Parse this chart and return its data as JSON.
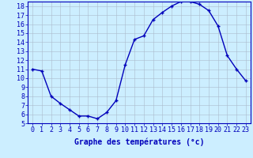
{
  "hours": [
    0,
    1,
    2,
    3,
    4,
    5,
    6,
    7,
    8,
    9,
    10,
    11,
    12,
    13,
    14,
    15,
    16,
    17,
    18,
    19,
    20,
    21,
    22,
    23
  ],
  "temperatures": [
    11.0,
    10.8,
    8.0,
    7.2,
    6.5,
    5.8,
    5.8,
    5.5,
    6.2,
    7.5,
    11.5,
    14.3,
    14.7,
    16.5,
    17.3,
    18.0,
    18.5,
    18.5,
    18.2,
    17.5,
    15.8,
    12.5,
    11.0,
    9.7
  ],
  "line_color": "#0000bb",
  "marker": "+",
  "bg_color": "#cceeff",
  "grid_color": "#aabbcc",
  "xlabel": "Graphe des températures (°c)",
  "ylim": [
    5,
    18.5
  ],
  "xlim": [
    -0.5,
    23.5
  ],
  "yticks": [
    5,
    6,
    7,
    8,
    9,
    10,
    11,
    12,
    13,
    14,
    15,
    16,
    17,
    18
  ],
  "xticks": [
    0,
    1,
    2,
    3,
    4,
    5,
    6,
    7,
    8,
    9,
    10,
    11,
    12,
    13,
    14,
    15,
    16,
    17,
    18,
    19,
    20,
    21,
    22,
    23
  ],
  "axis_color": "#0000bb",
  "tick_color": "#0000bb",
  "xlabel_fontsize": 7,
  "tick_fontsize": 6,
  "linewidth": 1.0,
  "markersize": 3,
  "markeredgewidth": 1.0
}
